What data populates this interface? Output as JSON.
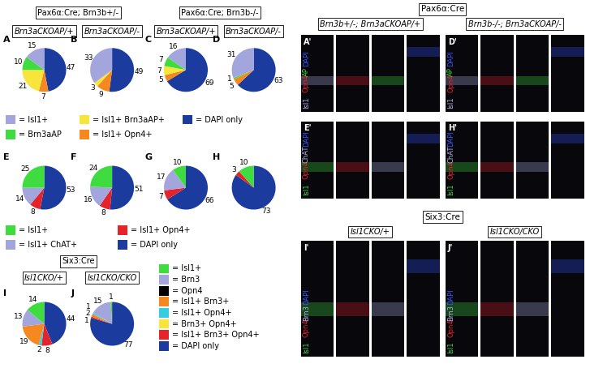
{
  "headers": [
    "Pax6α:Cre; Brn3b+/-",
    "Pax6α:Cre; Brn3b-/-",
    "Six3:Cre"
  ],
  "chart_data": [
    {
      "type": "pie",
      "panel": "A",
      "title": "Brn3aCKOAP/+",
      "values": [
        47,
        7,
        21,
        10,
        15
      ],
      "colors": [
        "#1b3c9e",
        "#f5891f",
        "#f7e53b",
        "#3fdc3f",
        "#a3a6dc"
      ],
      "data_labels": true
    },
    {
      "type": "pie",
      "panel": "B",
      "title": "Brn3aCKOAP/-",
      "values": [
        49,
        9,
        3,
        33
      ],
      "colors": [
        "#1b3c9e",
        "#f5891f",
        "#f7e53b",
        "#a3a6dc"
      ],
      "data_labels": true
    },
    {
      "type": "pie",
      "panel": "C",
      "title": "Brn3aCKOAP/+",
      "values": [
        69,
        5,
        7,
        7,
        16
      ],
      "colors": [
        "#1b3c9e",
        "#f5891f",
        "#f7e53b",
        "#3fdc3f",
        "#a3a6dc"
      ],
      "data_labels": true
    },
    {
      "type": "pie",
      "panel": "D",
      "title": "Brn3aCKOAP/-",
      "values": [
        63,
        5,
        1,
        31
      ],
      "colors": [
        "#1b3c9e",
        "#f5891f",
        "#3fdc3f",
        "#a3a6dc"
      ],
      "data_labels": true
    },
    {
      "type": "pie",
      "panel": "E",
      "values": [
        53,
        8,
        14,
        25
      ],
      "colors": [
        "#1b3c9e",
        "#e5232b",
        "#a3a6dc",
        "#3fdc3f"
      ],
      "data_labels": true
    },
    {
      "type": "pie",
      "panel": "F",
      "values": [
        51,
        8,
        16,
        24
      ],
      "colors": [
        "#1b3c9e",
        "#e5232b",
        "#a3a6dc",
        "#3fdc3f"
      ],
      "data_labels": true
    },
    {
      "type": "pie",
      "panel": "G",
      "values": [
        66,
        7,
        17,
        10
      ],
      "colors": [
        "#1b3c9e",
        "#e5232b",
        "#a3a6dc",
        "#3fdc3f"
      ],
      "data_labels": true
    },
    {
      "type": "pie",
      "panel": "H",
      "values": [
        73,
        3,
        10
      ],
      "colors": [
        "#1b3c9e",
        "#e5232b",
        "#3fdc3f"
      ],
      "data_labels": true
    },
    {
      "type": "pie",
      "panel": "I",
      "title": "Isl1CKO/+",
      "values": [
        44,
        8,
        2,
        19,
        13,
        14
      ],
      "colors": [
        "#1b3c9e",
        "#e5232b",
        "#37cde0",
        "#f5891f",
        "#a3a6dc",
        "#3fdc3f"
      ],
      "data_labels": true
    },
    {
      "type": "pie",
      "panel": "J",
      "title": "Isl1CKO/CKO",
      "values": [
        77,
        1,
        2,
        1,
        15,
        1
      ],
      "colors": [
        "#1b3c9e",
        "#e5232b",
        "#f5891f",
        "#37cde0",
        "#a3a6dc",
        "#3fdc3f"
      ],
      "data_labels": true
    }
  ],
  "legends": [
    [
      {
        "label": "= Isl1+",
        "color": "#a3a6dc"
      },
      {
        "label": "= Isl1+ Brn3aAP+",
        "color": "#f7e53b"
      },
      {
        "label": "= DAPI only",
        "color": "#1b3c9e"
      },
      {
        "label": "= Brn3aAP",
        "color": "#3fdc3f"
      },
      {
        "label": "= Isl1+ Opn4+",
        "color": "#f5891f"
      }
    ],
    [
      {
        "label": "= Isl1+",
        "color": "#3fdc3f"
      },
      {
        "label": "= Isl1+ Opn4+",
        "color": "#e5232b"
      },
      {
        "label": "= Isl1+ ChAT+",
        "color": "#a3a6dc"
      },
      {
        "label": "= DAPI only",
        "color": "#1b3c9e"
      }
    ],
    [
      {
        "label": "= Isl1+",
        "color": "#3fdc3f"
      },
      {
        "label": "= Brn3",
        "color": "#a3a6dc"
      },
      {
        "label": "= Opn4",
        "color": "#000000"
      },
      {
        "label": "= Isl1+ Brn3+",
        "color": "#f5891f"
      },
      {
        "label": "= Isl1+ Opn4+",
        "color": "#37cde0"
      },
      {
        "label": "= Brn3+ Opn4+",
        "color": "#f7e53b"
      },
      {
        "label": "= Isl1+ Brn3+ Opn4+",
        "color": "#e5232b"
      },
      {
        "label": "= DAPI only",
        "color": "#1b3c9e"
      }
    ]
  ],
  "image_panels": [
    {
      "title": "Pax6α:Cre",
      "columns": [
        "Brn3b+/-; Brn3aCKOAP/+",
        "Brn3b-/-; Brn3aCKOAP/-"
      ],
      "rows": [
        {
          "panels": [
            "A'",
            "D'"
          ],
          "channels": [
            {
              "name": "Isl1",
              "color": "#b3b3e6"
            },
            {
              "name": "Opn4",
              "color": "#e5232b"
            },
            {
              "name": "AP",
              "color": "#3fdc3f"
            },
            {
              "name": "DAPI",
              "color": "#3355ff"
            }
          ]
        },
        {
          "panels": [
            "E'",
            "H'"
          ],
          "channels": [
            {
              "name": "Isl1",
              "color": "#3fdc3f"
            },
            {
              "name": "Opn4",
              "color": "#e5232b"
            },
            {
              "name": "ChAT",
              "color": "#b3b3e6"
            },
            {
              "name": "DAPI",
              "color": "#3355ff"
            }
          ]
        }
      ]
    },
    {
      "title": "Six3:Cre",
      "columns": [
        "Isl1CKO/+",
        "Isl1CKO/CKO"
      ],
      "rows": [
        {
          "panels": [
            "I'",
            "J'"
          ],
          "channels": [
            {
              "name": "Isl1",
              "color": "#3fdc3f"
            },
            {
              "name": "Opn4",
              "color": "#e5232b"
            },
            {
              "name": "Brn3",
              "color": "#b3b3e6"
            },
            {
              "name": "DAPI",
              "color": "#3355ff"
            }
          ]
        }
      ]
    }
  ]
}
